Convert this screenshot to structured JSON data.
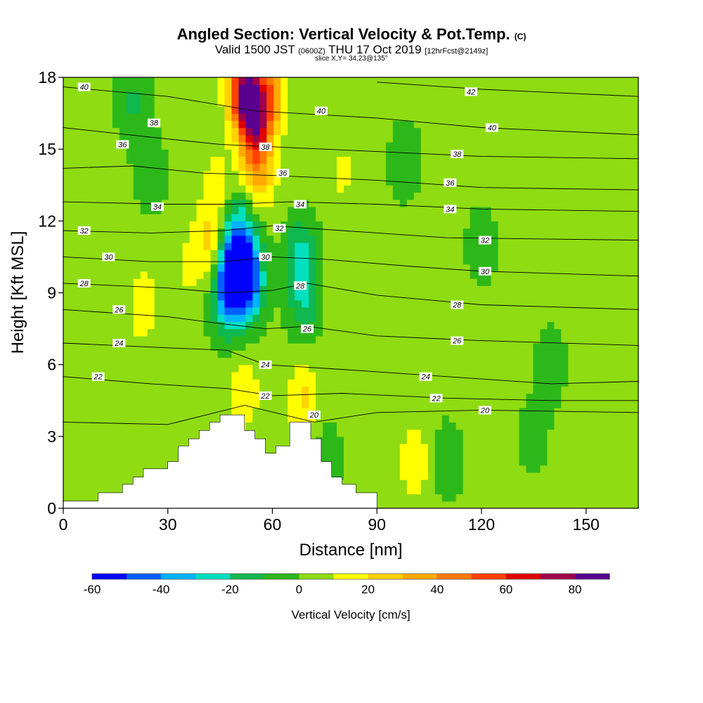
{
  "header": {
    "title": "Angled Section: Vertical Velocity & Pot.Temp.",
    "title_unit": "(C)",
    "valid_prefix": "Valid 1500 JST",
    "valid_utc": "(0600Z)",
    "valid_date": "THU 17 Oct 2019",
    "forecast": "[12hrFcst@2149z]",
    "slice": "slice X,Y= 34,23@135°"
  },
  "chart_data": {
    "type": "heatmap",
    "xlabel": "Distance [nm]",
    "ylabel": "Height [Kft MSL]",
    "xlim": [
      0,
      165
    ],
    "ylim": [
      0,
      18
    ],
    "x_ticks": [
      0,
      30,
      60,
      90,
      120,
      150
    ],
    "y_ticks": [
      0,
      3,
      6,
      9,
      12,
      15,
      18
    ],
    "colorbar": {
      "label": "Vertical Velocity [cm/s]",
      "ticks": [
        -60,
        -40,
        -20,
        0,
        20,
        40,
        60,
        80
      ],
      "levels": [
        -60,
        -50,
        -40,
        -30,
        -20,
        -10,
        0,
        10,
        20,
        30,
        40,
        50,
        60,
        70,
        80,
        90
      ],
      "colors": [
        "#0000ff",
        "#0060ff",
        "#00b4ff",
        "#00e0c0",
        "#10b850",
        "#2db81a",
        "#8fdc12",
        "#ffff00",
        "#ffd200",
        "#ffaa00",
        "#ff7800",
        "#ff4000",
        "#e00000",
        "#a0004a",
        "#5a0090"
      ]
    },
    "background_velocity": 3,
    "velocity_cells": [
      {
        "x": 48,
        "z": 10,
        "v": -45
      },
      {
        "x": 53,
        "z": 9.5,
        "v": -55
      },
      {
        "x": 51,
        "z": 11.5,
        "v": -30
      },
      {
        "x": 47,
        "z": 8.5,
        "v": -25
      },
      {
        "x": 68,
        "z": 10.5,
        "v": -25
      },
      {
        "x": 69,
        "z": 8.5,
        "v": -15
      },
      {
        "x": 52,
        "z": 17.5,
        "v": 75
      },
      {
        "x": 55,
        "z": 16,
        "v": 55
      },
      {
        "x": 56,
        "z": 14,
        "v": 30
      },
      {
        "x": 59,
        "z": 17.3,
        "v": 40
      },
      {
        "x": 42,
        "z": 11,
        "v": 25
      },
      {
        "x": 44,
        "z": 13.5,
        "v": 15
      },
      {
        "x": 23,
        "z": 8.5,
        "v": 17
      },
      {
        "x": 52,
        "z": 4.8,
        "v": 18
      },
      {
        "x": 69,
        "z": 4.5,
        "v": 22
      },
      {
        "x": 101,
        "z": 2,
        "v": 18
      },
      {
        "x": 80,
        "z": 14,
        "v": 12
      },
      {
        "x": 20,
        "z": 17,
        "v": -12
      },
      {
        "x": 25,
        "z": 14,
        "v": -8
      },
      {
        "x": 98,
        "z": 14.5,
        "v": -8
      },
      {
        "x": 120,
        "z": 11,
        "v": -6
      },
      {
        "x": 140,
        "z": 6,
        "v": -6
      },
      {
        "x": 75,
        "z": 2,
        "v": -8
      },
      {
        "x": 110,
        "z": 2,
        "v": -8
      },
      {
        "x": 135,
        "z": 3,
        "v": -5
      },
      {
        "x": 158,
        "z": 9,
        "v": 10
      },
      {
        "x": 10,
        "z": 12,
        "v": 8
      },
      {
        "x": 35,
        "z": 10,
        "v": 10
      }
    ],
    "terrain": [
      [
        0,
        0.3
      ],
      [
        10,
        0.3
      ],
      [
        10,
        0.65
      ],
      [
        17,
        0.65
      ],
      [
        17,
        1.0
      ],
      [
        20,
        1.0
      ],
      [
        20,
        1.3
      ],
      [
        23,
        1.3
      ],
      [
        23,
        1.65
      ],
      [
        30,
        1.65
      ],
      [
        30,
        1.95
      ],
      [
        33,
        1.95
      ],
      [
        33,
        2.6
      ],
      [
        36,
        2.6
      ],
      [
        36,
        2.9
      ],
      [
        39,
        2.9
      ],
      [
        39,
        3.25
      ],
      [
        42,
        3.25
      ],
      [
        42,
        3.6
      ],
      [
        45,
        3.6
      ],
      [
        45,
        3.9
      ],
      [
        52,
        3.9
      ],
      [
        52,
        3.25
      ],
      [
        55,
        3.25
      ],
      [
        55,
        2.9
      ],
      [
        58,
        2.9
      ],
      [
        58,
        2.3
      ],
      [
        61,
        2.3
      ],
      [
        61,
        2.6
      ],
      [
        65,
        2.6
      ],
      [
        65,
        3.6
      ],
      [
        71,
        3.6
      ],
      [
        71,
        2.9
      ],
      [
        74,
        2.9
      ],
      [
        74,
        1.95
      ],
      [
        77,
        1.95
      ],
      [
        77,
        1.3
      ],
      [
        80,
        1.3
      ],
      [
        80,
        1.0
      ],
      [
        84,
        1.0
      ],
      [
        84,
        0.65
      ],
      [
        90,
        0.65
      ],
      [
        90,
        0
      ],
      [
        165,
        0
      ]
    ],
    "isentropes": [
      {
        "label": "20",
        "pts": [
          [
            0,
            3.6
          ],
          [
            30,
            3.5
          ],
          [
            52,
            4.3
          ],
          [
            72,
            3.6
          ],
          [
            90,
            4.0
          ],
          [
            120,
            4.1
          ],
          [
            165,
            4.0
          ]
        ]
      },
      {
        "label": "22",
        "pts": [
          [
            0,
            5.5
          ],
          [
            25,
            5.2
          ],
          [
            47,
            5.0
          ],
          [
            60,
            4.7
          ],
          [
            80,
            4.8
          ],
          [
            110,
            4.6
          ],
          [
            140,
            4.5
          ],
          [
            165,
            4.5
          ]
        ]
      },
      {
        "label": "24",
        "pts": [
          [
            0,
            6.9
          ],
          [
            30,
            6.7
          ],
          [
            47,
            6.6
          ],
          [
            58,
            6.0
          ],
          [
            80,
            5.8
          ],
          [
            110,
            5.5
          ],
          [
            140,
            5.2
          ],
          [
            165,
            5.3
          ]
        ]
      },
      {
        "label": "26",
        "pts": [
          [
            0,
            8.3
          ],
          [
            30,
            8.0
          ],
          [
            46,
            7.7
          ],
          [
            58,
            7.5
          ],
          [
            70,
            7.6
          ],
          [
            90,
            7.2
          ],
          [
            120,
            7.0
          ],
          [
            165,
            6.8
          ]
        ]
      },
      {
        "label": "28",
        "pts": [
          [
            0,
            9.4
          ],
          [
            30,
            9.2
          ],
          [
            46,
            9.0
          ],
          [
            60,
            9.1
          ],
          [
            70,
            9.4
          ],
          [
            90,
            8.9
          ],
          [
            120,
            8.5
          ],
          [
            165,
            8.3
          ]
        ]
      },
      {
        "label": "30",
        "pts": [
          [
            0,
            10.5
          ],
          [
            25,
            10.3
          ],
          [
            46,
            10.3
          ],
          [
            60,
            10.5
          ],
          [
            75,
            10.4
          ],
          [
            100,
            10.1
          ],
          [
            120,
            9.9
          ],
          [
            165,
            9.7
          ]
        ]
      },
      {
        "label": "32",
        "pts": [
          [
            0,
            11.6
          ],
          [
            25,
            11.5
          ],
          [
            46,
            11.6
          ],
          [
            60,
            11.8
          ],
          [
            80,
            11.6
          ],
          [
            110,
            11.3
          ],
          [
            165,
            11.2
          ]
        ]
      },
      {
        "label": "34",
        "pts": [
          [
            0,
            12.8
          ],
          [
            30,
            12.7
          ],
          [
            48,
            12.7
          ],
          [
            65,
            12.8
          ],
          [
            90,
            12.7
          ],
          [
            120,
            12.5
          ],
          [
            165,
            12.4
          ]
        ]
      },
      {
        "label": "36",
        "pts": [
          [
            0,
            14.2
          ],
          [
            20,
            14.3
          ],
          [
            40,
            14.0
          ],
          [
            60,
            13.9
          ],
          [
            90,
            13.7
          ],
          [
            120,
            13.4
          ],
          [
            165,
            13.3
          ]
        ]
      },
      {
        "label": "38",
        "pts": [
          [
            0,
            15.9
          ],
          [
            25,
            15.5
          ],
          [
            45,
            15.2
          ],
          [
            60,
            15.1
          ],
          [
            90,
            14.9
          ],
          [
            120,
            14.7
          ],
          [
            165,
            14.6
          ]
        ]
      },
      {
        "label": "40",
        "pts": [
          [
            0,
            17.6
          ],
          [
            30,
            17.2
          ],
          [
            55,
            16.6
          ],
          [
            90,
            16.3
          ],
          [
            120,
            15.9
          ],
          [
            165,
            15.6
          ]
        ]
      },
      {
        "label": "42",
        "pts": [
          [
            90,
            17.8
          ],
          [
            120,
            17.5
          ],
          [
            165,
            17.2
          ]
        ]
      }
    ],
    "contour_labels": [
      {
        "text": "40",
        "x": 6,
        "z": 17.6
      },
      {
        "text": "38",
        "x": 26,
        "z": 16.1
      },
      {
        "text": "36",
        "x": 17,
        "z": 15.2
      },
      {
        "text": "34",
        "x": 27,
        "z": 12.6
      },
      {
        "text": "32",
        "x": 6,
        "z": 11.6
      },
      {
        "text": "30",
        "x": 13,
        "z": 10.5
      },
      {
        "text": "28",
        "x": 6,
        "z": 9.4
      },
      {
        "text": "26",
        "x": 16,
        "z": 8.3
      },
      {
        "text": "24",
        "x": 16,
        "z": 6.9
      },
      {
        "text": "22",
        "x": 10,
        "z": 5.5
      },
      {
        "text": "38",
        "x": 58,
        "z": 15.1
      },
      {
        "text": "40",
        "x": 74,
        "z": 16.6
      },
      {
        "text": "36",
        "x": 63,
        "z": 14.0
      },
      {
        "text": "34",
        "x": 68,
        "z": 12.7
      },
      {
        "text": "32",
        "x": 62,
        "z": 11.7
      },
      {
        "text": "30",
        "x": 58,
        "z": 10.5
      },
      {
        "text": "28",
        "x": 68,
        "z": 9.3
      },
      {
        "text": "26",
        "x": 70,
        "z": 7.5
      },
      {
        "text": "24",
        "x": 58,
        "z": 6.0
      },
      {
        "text": "22",
        "x": 58,
        "z": 4.7
      },
      {
        "text": "20",
        "x": 72,
        "z": 3.9
      },
      {
        "text": "42",
        "x": 117,
        "z": 17.4
      },
      {
        "text": "40",
        "x": 123,
        "z": 15.9
      },
      {
        "text": "38",
        "x": 113,
        "z": 14.8
      },
      {
        "text": "36",
        "x": 111,
        "z": 13.6
      },
      {
        "text": "34",
        "x": 111,
        "z": 12.5
      },
      {
        "text": "32",
        "x": 121,
        "z": 11.2
      },
      {
        "text": "30",
        "x": 121,
        "z": 9.9
      },
      {
        "text": "28",
        "x": 113,
        "z": 8.5
      },
      {
        "text": "26",
        "x": 113,
        "z": 7.0
      },
      {
        "text": "24",
        "x": 104,
        "z": 5.5
      },
      {
        "text": "22",
        "x": 107,
        "z": 4.6
      },
      {
        "text": "20",
        "x": 121,
        "z": 4.1
      }
    ]
  }
}
